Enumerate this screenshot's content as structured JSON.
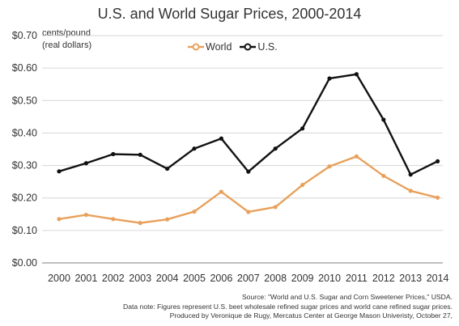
{
  "chart_data": {
    "type": "line",
    "title": "U.S. and World Sugar Prices, 2000-2014",
    "ylabel_lines": [
      "cents/pound",
      "(real dollars)"
    ],
    "x": [
      "2000",
      "2001",
      "2002",
      "2003",
      "2004",
      "2005",
      "2006",
      "2007",
      "2008",
      "2009",
      "2010",
      "2011",
      "2012",
      "2013",
      "2014"
    ],
    "ylim": [
      0,
      0.7
    ],
    "ytick_values": [
      0,
      0.1,
      0.2,
      0.3,
      0.4,
      0.5,
      0.6,
      0.7
    ],
    "ytick_labels": [
      "$0.00",
      "$0.10",
      "$0.20",
      "$0.30",
      "$0.40",
      "$0.50",
      "$0.60",
      "$0.70"
    ],
    "grid": true,
    "legend_position": "top-center",
    "series": [
      {
        "name": "World",
        "color": "#E8A15C",
        "values": [
          0.135,
          0.148,
          0.135,
          0.123,
          0.134,
          0.158,
          0.219,
          0.157,
          0.172,
          0.24,
          0.297,
          0.328,
          0.268,
          0.222,
          0.201
        ]
      },
      {
        "name": "U.S.",
        "color": "#111111",
        "values": [
          0.282,
          0.307,
          0.335,
          0.333,
          0.29,
          0.352,
          0.383,
          0.281,
          0.352,
          0.414,
          0.568,
          0.581,
          0.441,
          0.272,
          0.313
        ]
      }
    ]
  },
  "footnotes": [
    "Source: \"World and U.S. Sugar and Corn Sweetener Prices,\" USDA.",
    "Data note: Figures represent U.S. beet wholesale refined sugar prices and world cane refined sugar prices.",
    "Produced by Veronique de Rugy, Mercatus Center at George Mason Univeristy, October 27,"
  ]
}
